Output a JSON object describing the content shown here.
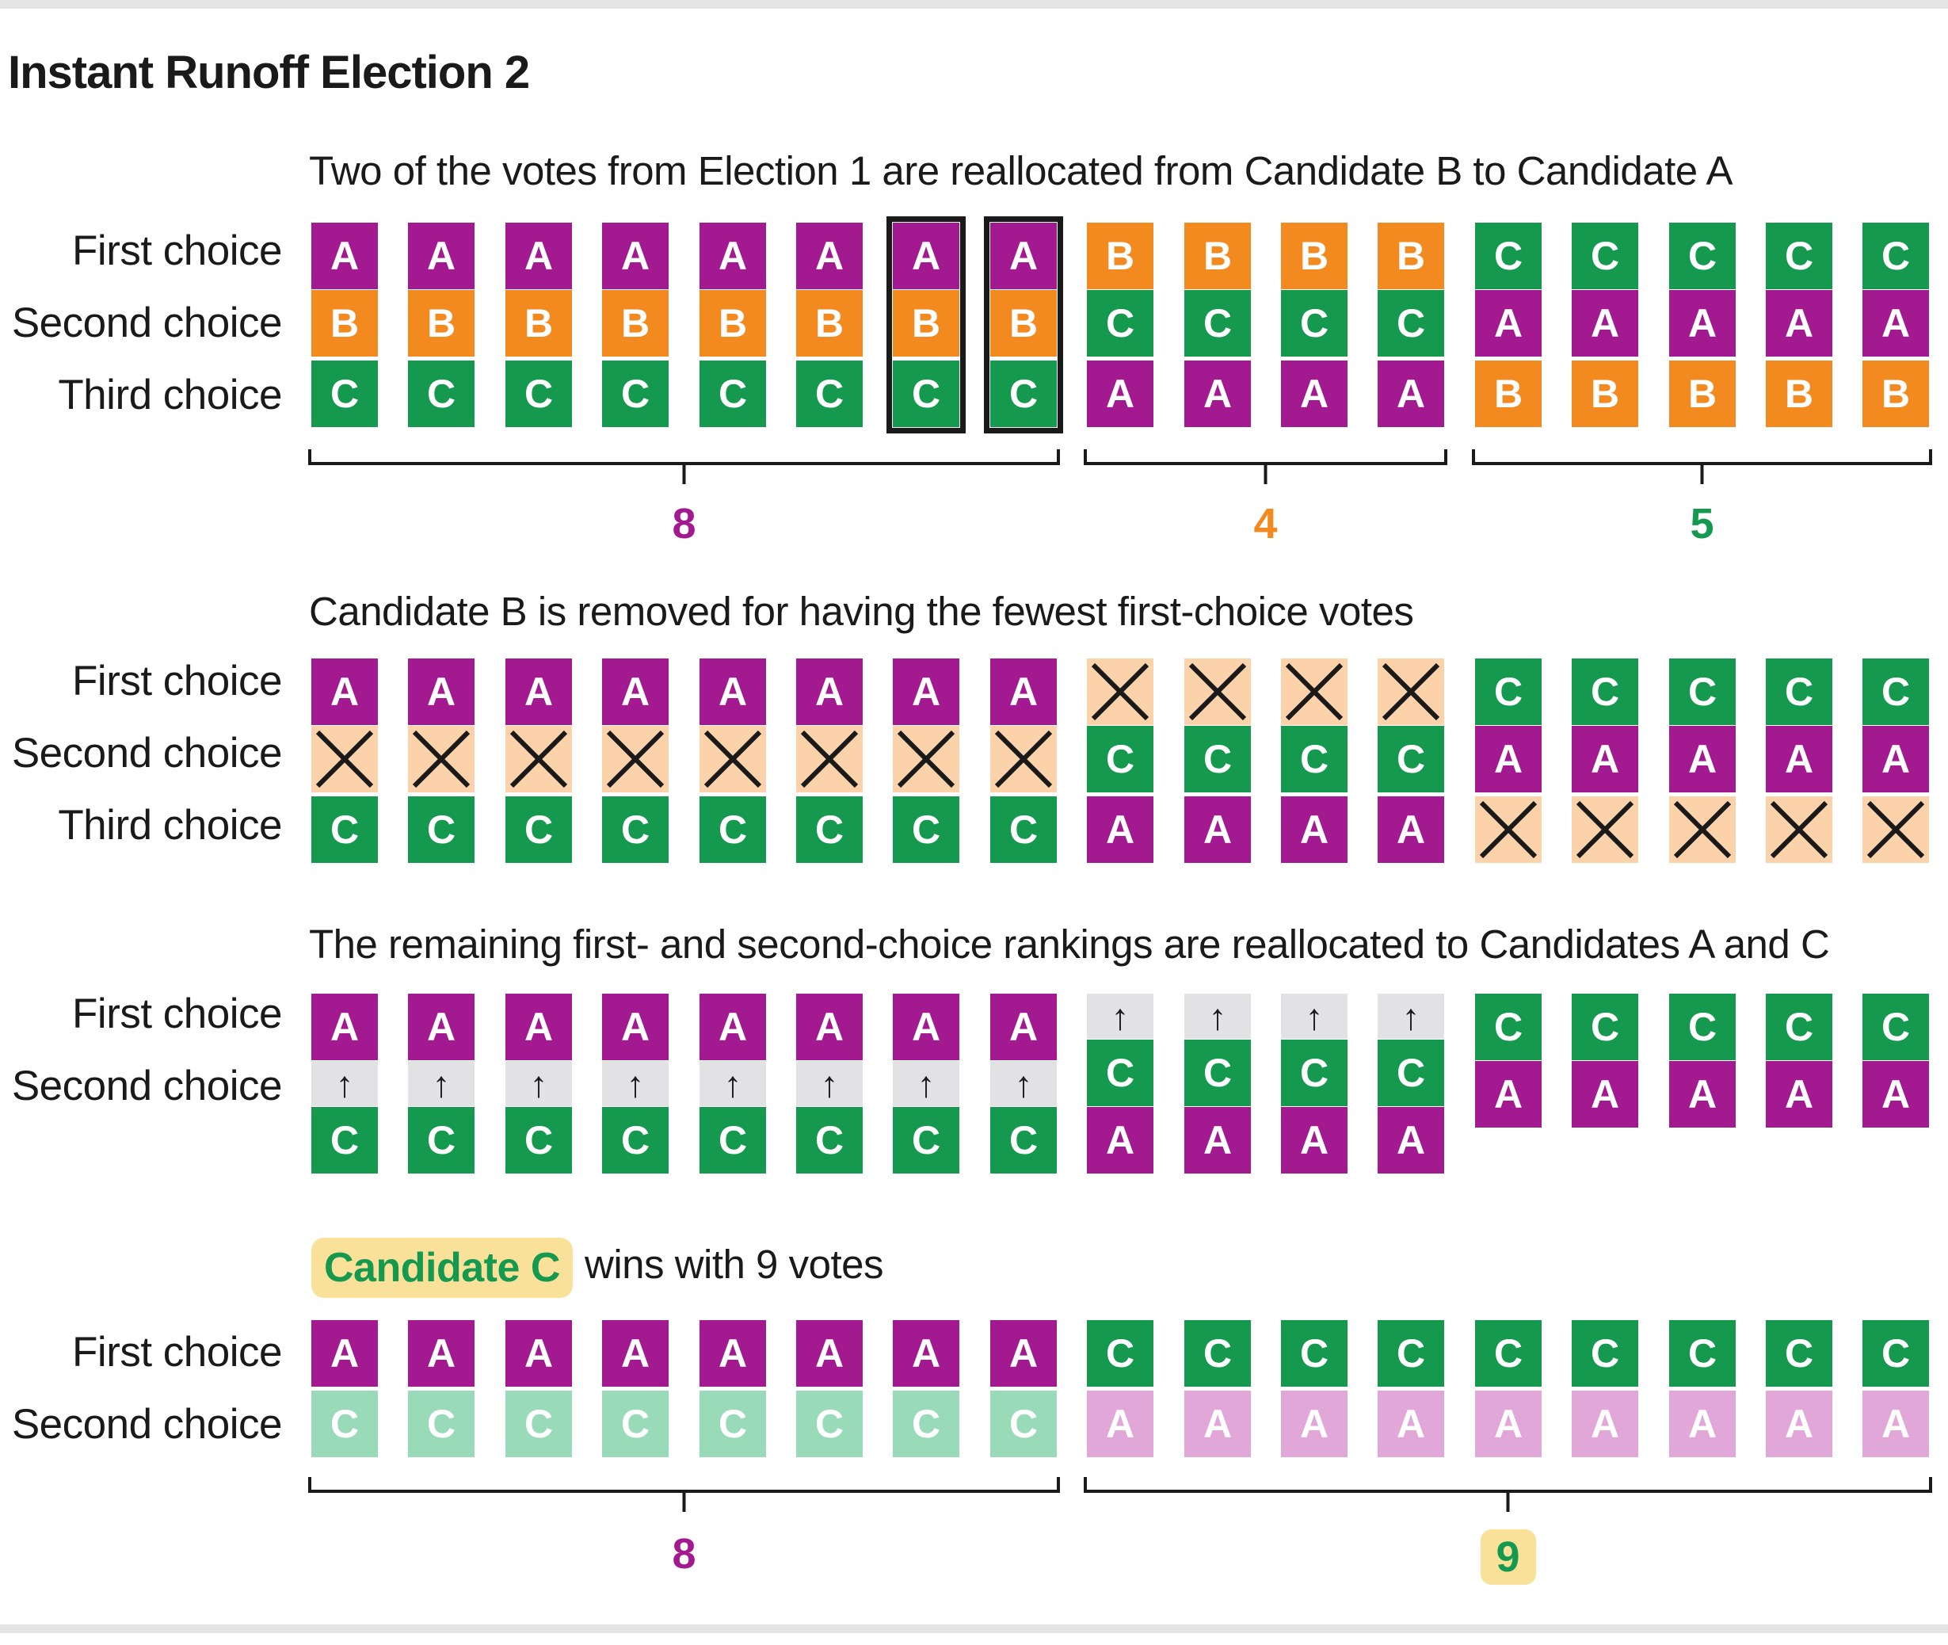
{
  "title": "Instant Runoff Election 2",
  "row_labels": {
    "first": "First choice",
    "second": "Second choice",
    "third": "Third choice"
  },
  "colors": {
    "A": "#a3198f",
    "B": "#f28a1f",
    "C": "#14994f",
    "A_faded": "#e0a7d8",
    "C_faded": "#99dbb9",
    "struck": "#fbd2aa",
    "arrow_bg": "#e2e2e4",
    "highlight": "#f9e19a"
  },
  "sections": [
    {
      "caption": "Two of the votes from Election 1 are reallocated from Candidate B to Candidate A",
      "rows": [
        "first",
        "second",
        "third"
      ],
      "groups": [
        {
          "ballot": [
            "A",
            "B",
            "C"
          ],
          "count": 8,
          "highlighted_ballots": [
            7,
            8
          ]
        },
        {
          "ballot": [
            "B",
            "C",
            "A"
          ],
          "count": 4
        },
        {
          "ballot": [
            "C",
            "A",
            "B"
          ],
          "count": 5
        }
      ],
      "bracket_totals": [
        {
          "label": "8",
          "color": "A"
        },
        {
          "label": "4",
          "color": "B"
        },
        {
          "label": "5",
          "color": "C"
        }
      ]
    },
    {
      "caption": "Candidate B is removed for having the fewest first-choice votes",
      "rows": [
        "first",
        "second",
        "third"
      ],
      "groups": [
        {
          "ballot": [
            "A",
            "x",
            "C"
          ],
          "count": 8
        },
        {
          "ballot": [
            "x",
            "C",
            "A"
          ],
          "count": 4
        },
        {
          "ballot": [
            "C",
            "A",
            "x"
          ],
          "count": 5
        }
      ]
    },
    {
      "caption": "The remaining first- and second-choice rankings are reallocated to Candidates A and C",
      "rows": [
        "first",
        "second"
      ],
      "groups": [
        {
          "ballot": [
            "A",
            "↑",
            "C"
          ],
          "count": 8
        },
        {
          "ballot": [
            "↑",
            "C",
            "A"
          ],
          "count": 4
        },
        {
          "ballot": [
            "C",
            "A"
          ],
          "count": 5
        }
      ]
    },
    {
      "winner_name": "Candidate C",
      "winner_rest": "wins with 9 votes",
      "rows": [
        "first",
        "second"
      ],
      "groups": [
        {
          "ballot": [
            "A",
            "C"
          ],
          "count": 8,
          "faded_second": true
        },
        {
          "ballot": [
            "C",
            "A"
          ],
          "count": 9,
          "faded_second": true
        }
      ],
      "bracket_totals": [
        {
          "label": "8",
          "color": "A"
        },
        {
          "label": "9",
          "color": "C",
          "highlight": true
        }
      ]
    }
  ]
}
